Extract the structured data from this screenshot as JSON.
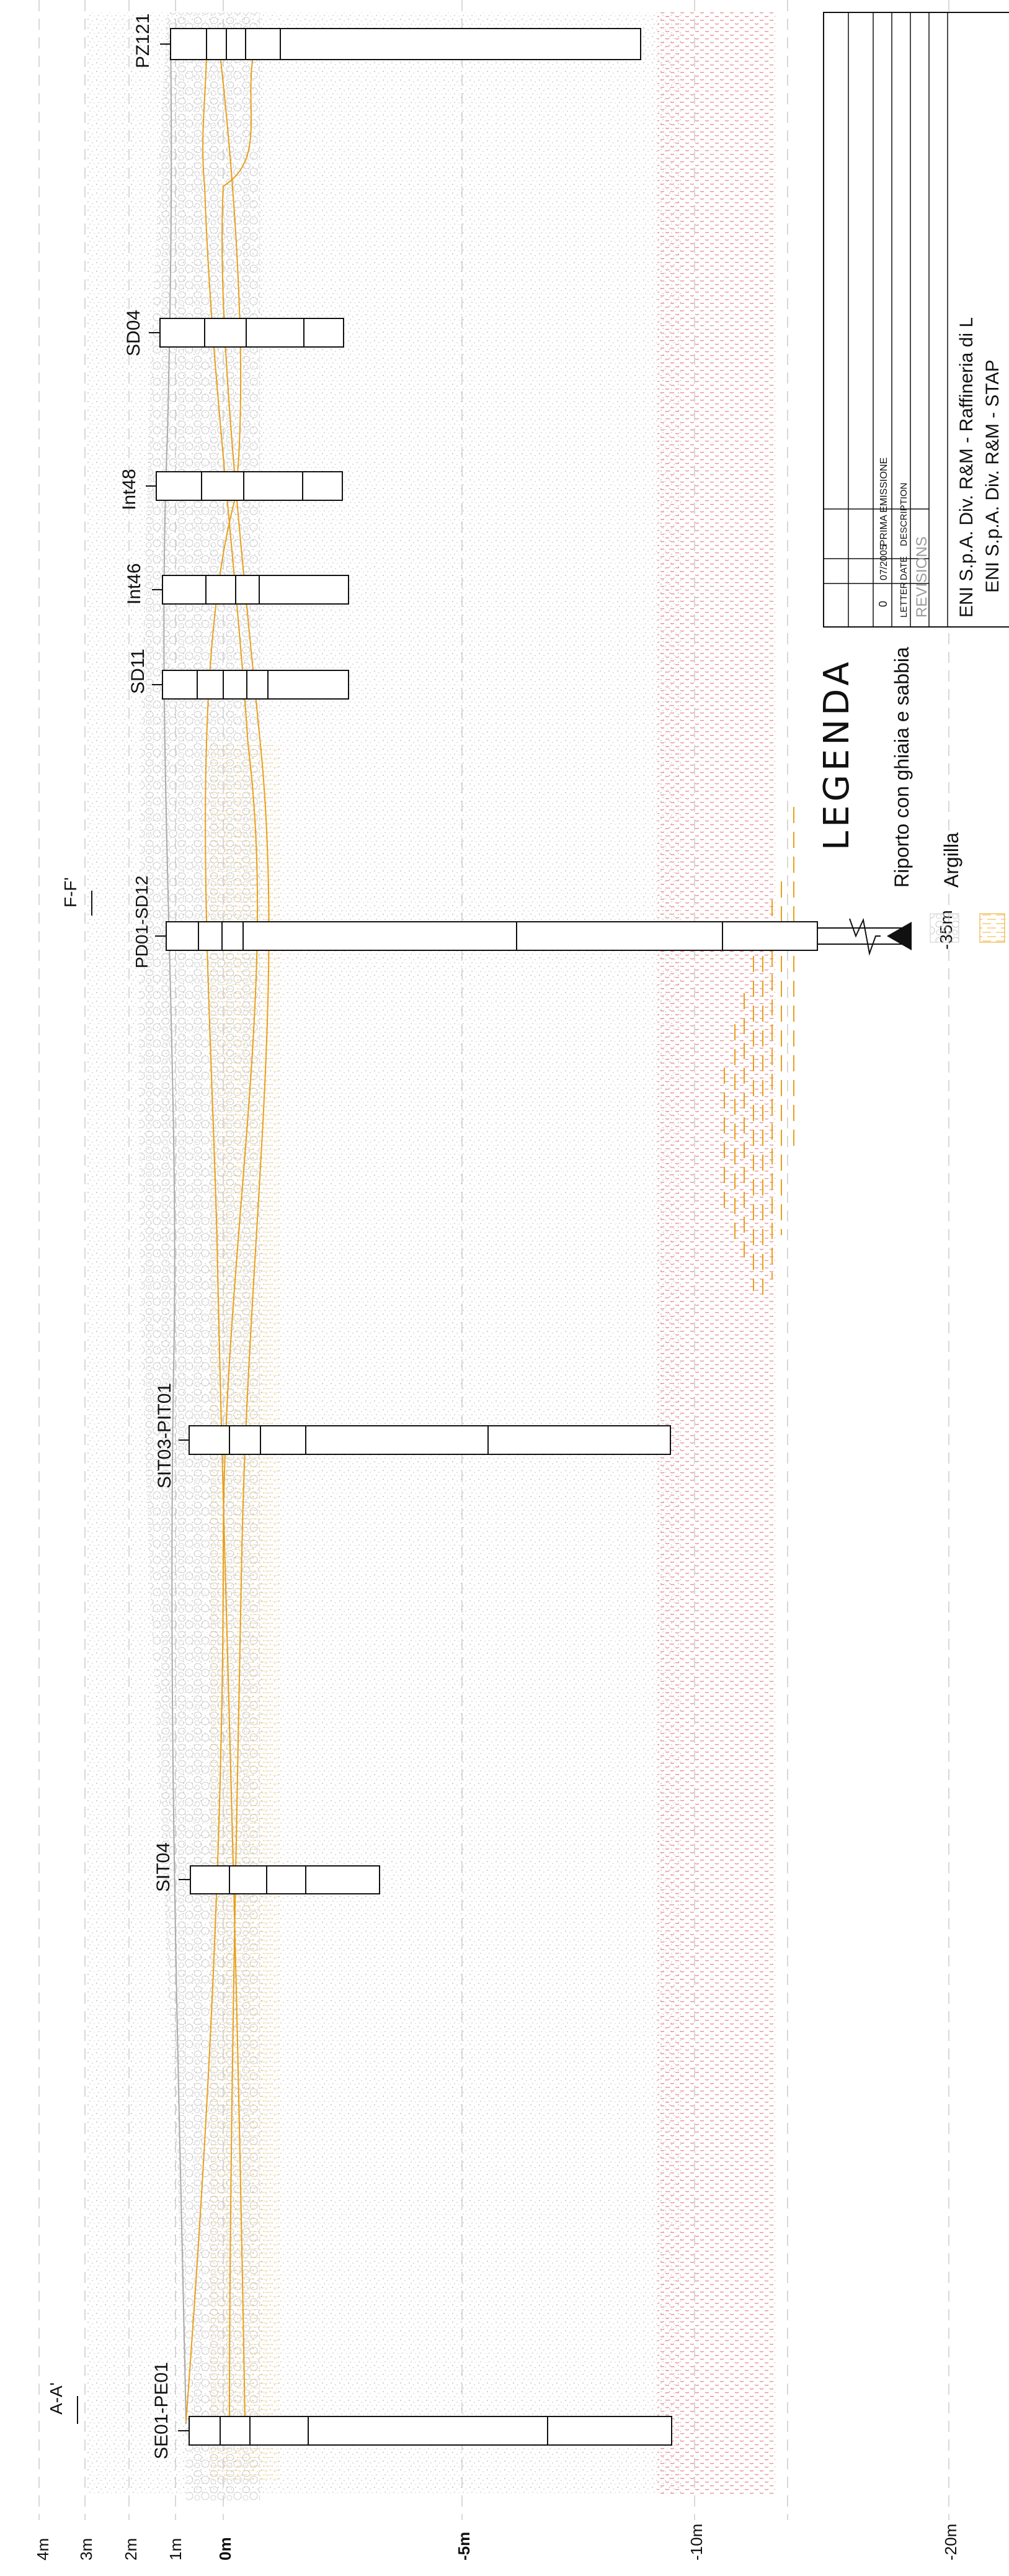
{
  "elevation_scale": [
    "4m",
    "3m",
    "2m",
    "1m",
    "0m",
    "-5m",
    "-10m",
    "-20m"
  ],
  "sections": [
    "A-A'",
    "F-F'"
  ],
  "boreholes": [
    {
      "name": "SE01-PE01"
    },
    {
      "name": "SIT04"
    },
    {
      "name": "SIT03-PIT01"
    },
    {
      "name": "PD01-SD12"
    },
    {
      "name": "SD11"
    },
    {
      "name": "Int46"
    },
    {
      "name": "Int48"
    },
    {
      "name": "SD04"
    },
    {
      "name": "PZ121"
    }
  ],
  "depth_note": "-35m",
  "legend": {
    "title": "LEGENDA",
    "items": [
      {
        "label": "Riporto con ghiaia e sabbia"
      },
      {
        "label": "Argilla"
      }
    ]
  },
  "revisions": {
    "title": "REVISIONS",
    "headers": [
      "LETTER",
      "DATE",
      "DESCRIPTION"
    ],
    "rows": [
      {
        "letter": "0",
        "date": "07/2005",
        "description": "PRIMA EMISSIONE"
      }
    ]
  },
  "title_block": {
    "line1": "ENI S.p.A. Div. R&M - Raffineria di L",
    "line2": "ENI S.p.A. Div. R&M - STAP"
  },
  "colors": {
    "fill_pattern": "#bdbdbd",
    "clay": "#e8a01a",
    "deep_layer": "#e06060",
    "borehole": "#111111"
  }
}
